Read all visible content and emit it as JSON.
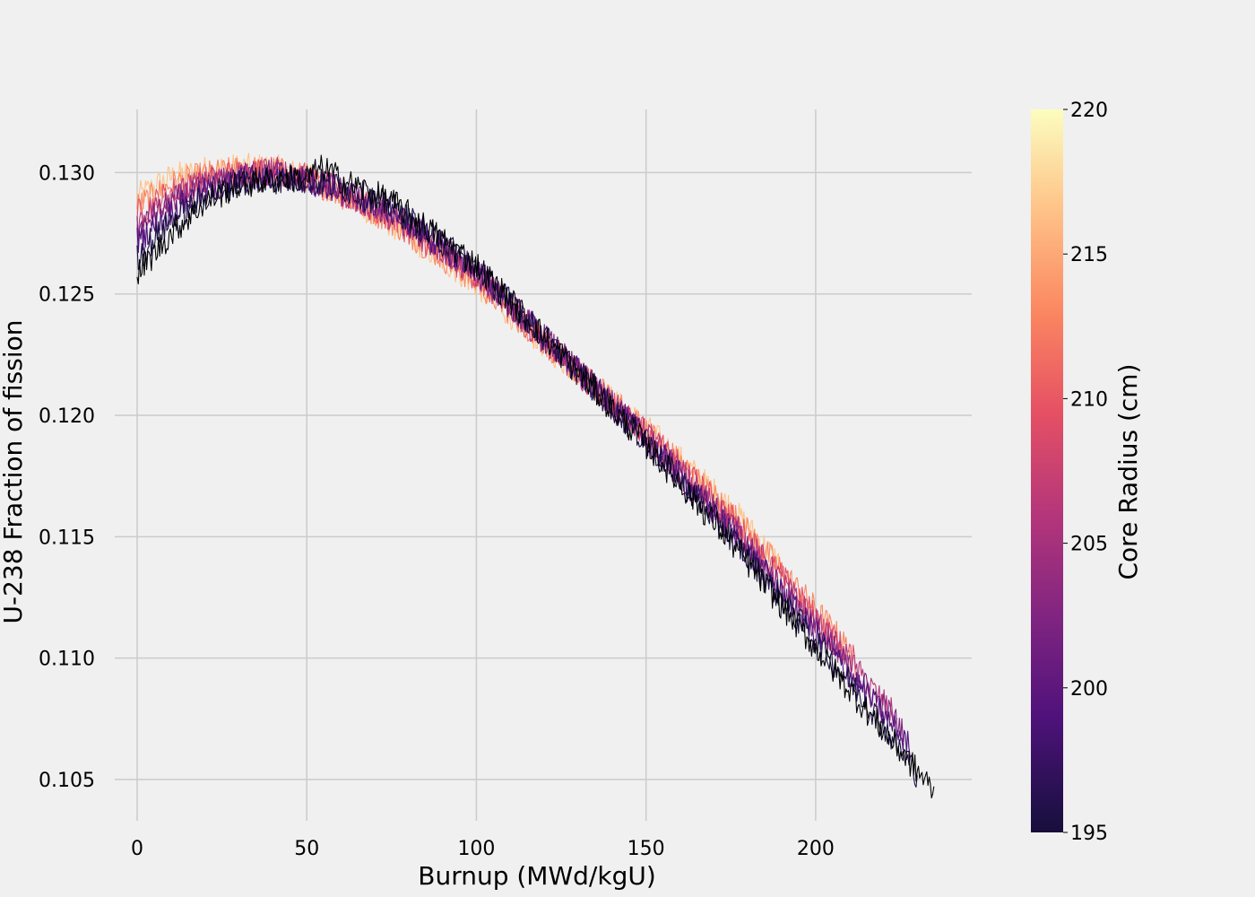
{
  "chart_data": {
    "type": "line",
    "title": "",
    "xlabel": "Burnup (MWd/kgU)",
    "ylabel": "U-238 Fraction of fission",
    "xlim": [
      -6.6,
      246
    ],
    "ylim": [
      0.1033,
      0.1326
    ],
    "x_ticks": [
      "0",
      "50",
      "100",
      "150",
      "200"
    ],
    "x_tick_values": [
      0,
      50,
      100,
      150,
      200
    ],
    "y_ticks": [
      "0.105",
      "0.110",
      "0.115",
      "0.120",
      "0.125",
      "0.130"
    ],
    "y_tick_values": [
      0.105,
      0.11,
      0.115,
      0.12,
      0.125,
      0.13
    ],
    "grid": true,
    "colormap": "magma",
    "noise_amplitude": 0.0006,
    "colorbar": {
      "label": "Core Radius (cm)",
      "range": [
        195,
        220
      ],
      "ticks": [
        "195",
        "200",
        "205",
        "210",
        "215",
        "220"
      ],
      "tick_values": [
        195,
        200,
        205,
        210,
        215,
        220
      ],
      "colors": [
        "#000004",
        "#1c1044",
        "#4f127b",
        "#812581",
        "#b5367a",
        "#e55064",
        "#fb8761",
        "#fec287",
        "#fcfdbf"
      ]
    },
    "series": [
      {
        "radius": 195,
        "color": "#000004",
        "x": [
          0,
          10,
          20,
          30,
          40,
          50,
          55,
          60,
          75,
          100,
          125,
          150,
          175,
          200,
          220,
          235
        ],
        "y": [
          0.1258,
          0.1275,
          0.1288,
          0.1295,
          0.1297,
          0.1298,
          0.1302,
          0.1297,
          0.1288,
          0.1262,
          0.1225,
          0.1188,
          0.1148,
          0.1104,
          0.107,
          0.1045
        ]
      },
      {
        "radius": 199,
        "color": "#1c1044",
        "x": [
          0,
          10,
          20,
          30,
          40,
          50,
          60,
          75,
          100,
          125,
          150,
          175,
          200,
          215,
          230
        ],
        "y": [
          0.1265,
          0.128,
          0.129,
          0.1296,
          0.1297,
          0.1297,
          0.1294,
          0.1286,
          0.1261,
          0.1225,
          0.1189,
          0.115,
          0.1107,
          0.1082,
          0.1052
        ]
      },
      {
        "radius": 203,
        "color": "#4f127b",
        "x": [
          0,
          10,
          20,
          30,
          40,
          50,
          60,
          75,
          100,
          125,
          150,
          175,
          200,
          215,
          228
        ],
        "y": [
          0.1272,
          0.1284,
          0.1292,
          0.1297,
          0.1298,
          0.1297,
          0.1293,
          0.1284,
          0.126,
          0.1225,
          0.119,
          0.1152,
          0.111,
          0.1085,
          0.1063
        ]
      },
      {
        "radius": 207,
        "color": "#812581",
        "x": [
          0,
          10,
          20,
          30,
          40,
          50,
          60,
          75,
          100,
          125,
          150,
          175,
          200,
          215,
          226
        ],
        "y": [
          0.1276,
          0.1288,
          0.1294,
          0.1298,
          0.13,
          0.1297,
          0.1292,
          0.1283,
          0.1259,
          0.1225,
          0.1191,
          0.1154,
          0.1112,
          0.1088,
          0.107
        ]
      },
      {
        "radius": 211,
        "color": "#b5367a",
        "x": [
          0,
          10,
          20,
          30,
          40,
          50,
          60,
          75,
          100,
          125,
          150,
          175,
          200,
          212,
          224
        ],
        "y": [
          0.128,
          0.129,
          0.1296,
          0.1299,
          0.1301,
          0.1298,
          0.1292,
          0.1282,
          0.1258,
          0.1224,
          0.1192,
          0.1156,
          0.1115,
          0.1095,
          0.1075
        ]
      },
      {
        "radius": 214,
        "color": "#e55064",
        "x": [
          0,
          10,
          20,
          30,
          40,
          50,
          60,
          75,
          100,
          125,
          150,
          175,
          200,
          212
        ],
        "y": [
          0.1283,
          0.1292,
          0.1297,
          0.13,
          0.1301,
          0.1298,
          0.1292,
          0.1281,
          0.1257,
          0.1224,
          0.1193,
          0.1158,
          0.1117,
          0.1098
        ]
      },
      {
        "radius": 217,
        "color": "#fb8761",
        "x": [
          0,
          10,
          20,
          30,
          40,
          50,
          60,
          75,
          100,
          125,
          150,
          175,
          200,
          210
        ],
        "y": [
          0.1286,
          0.1295,
          0.1299,
          0.1301,
          0.1301,
          0.1298,
          0.1291,
          0.128,
          0.1255,
          0.1224,
          0.1194,
          0.116,
          0.112,
          0.1103
        ]
      },
      {
        "radius": 220,
        "color": "#fec287",
        "x": [
          0,
          10,
          20,
          30,
          40,
          50,
          60,
          75,
          100,
          125,
          150,
          175,
          190
        ],
        "y": [
          0.129,
          0.1298,
          0.1301,
          0.1302,
          0.1302,
          0.1298,
          0.1291,
          0.1279,
          0.1254,
          0.1223,
          0.1195,
          0.1162,
          0.1138
        ]
      }
    ]
  }
}
